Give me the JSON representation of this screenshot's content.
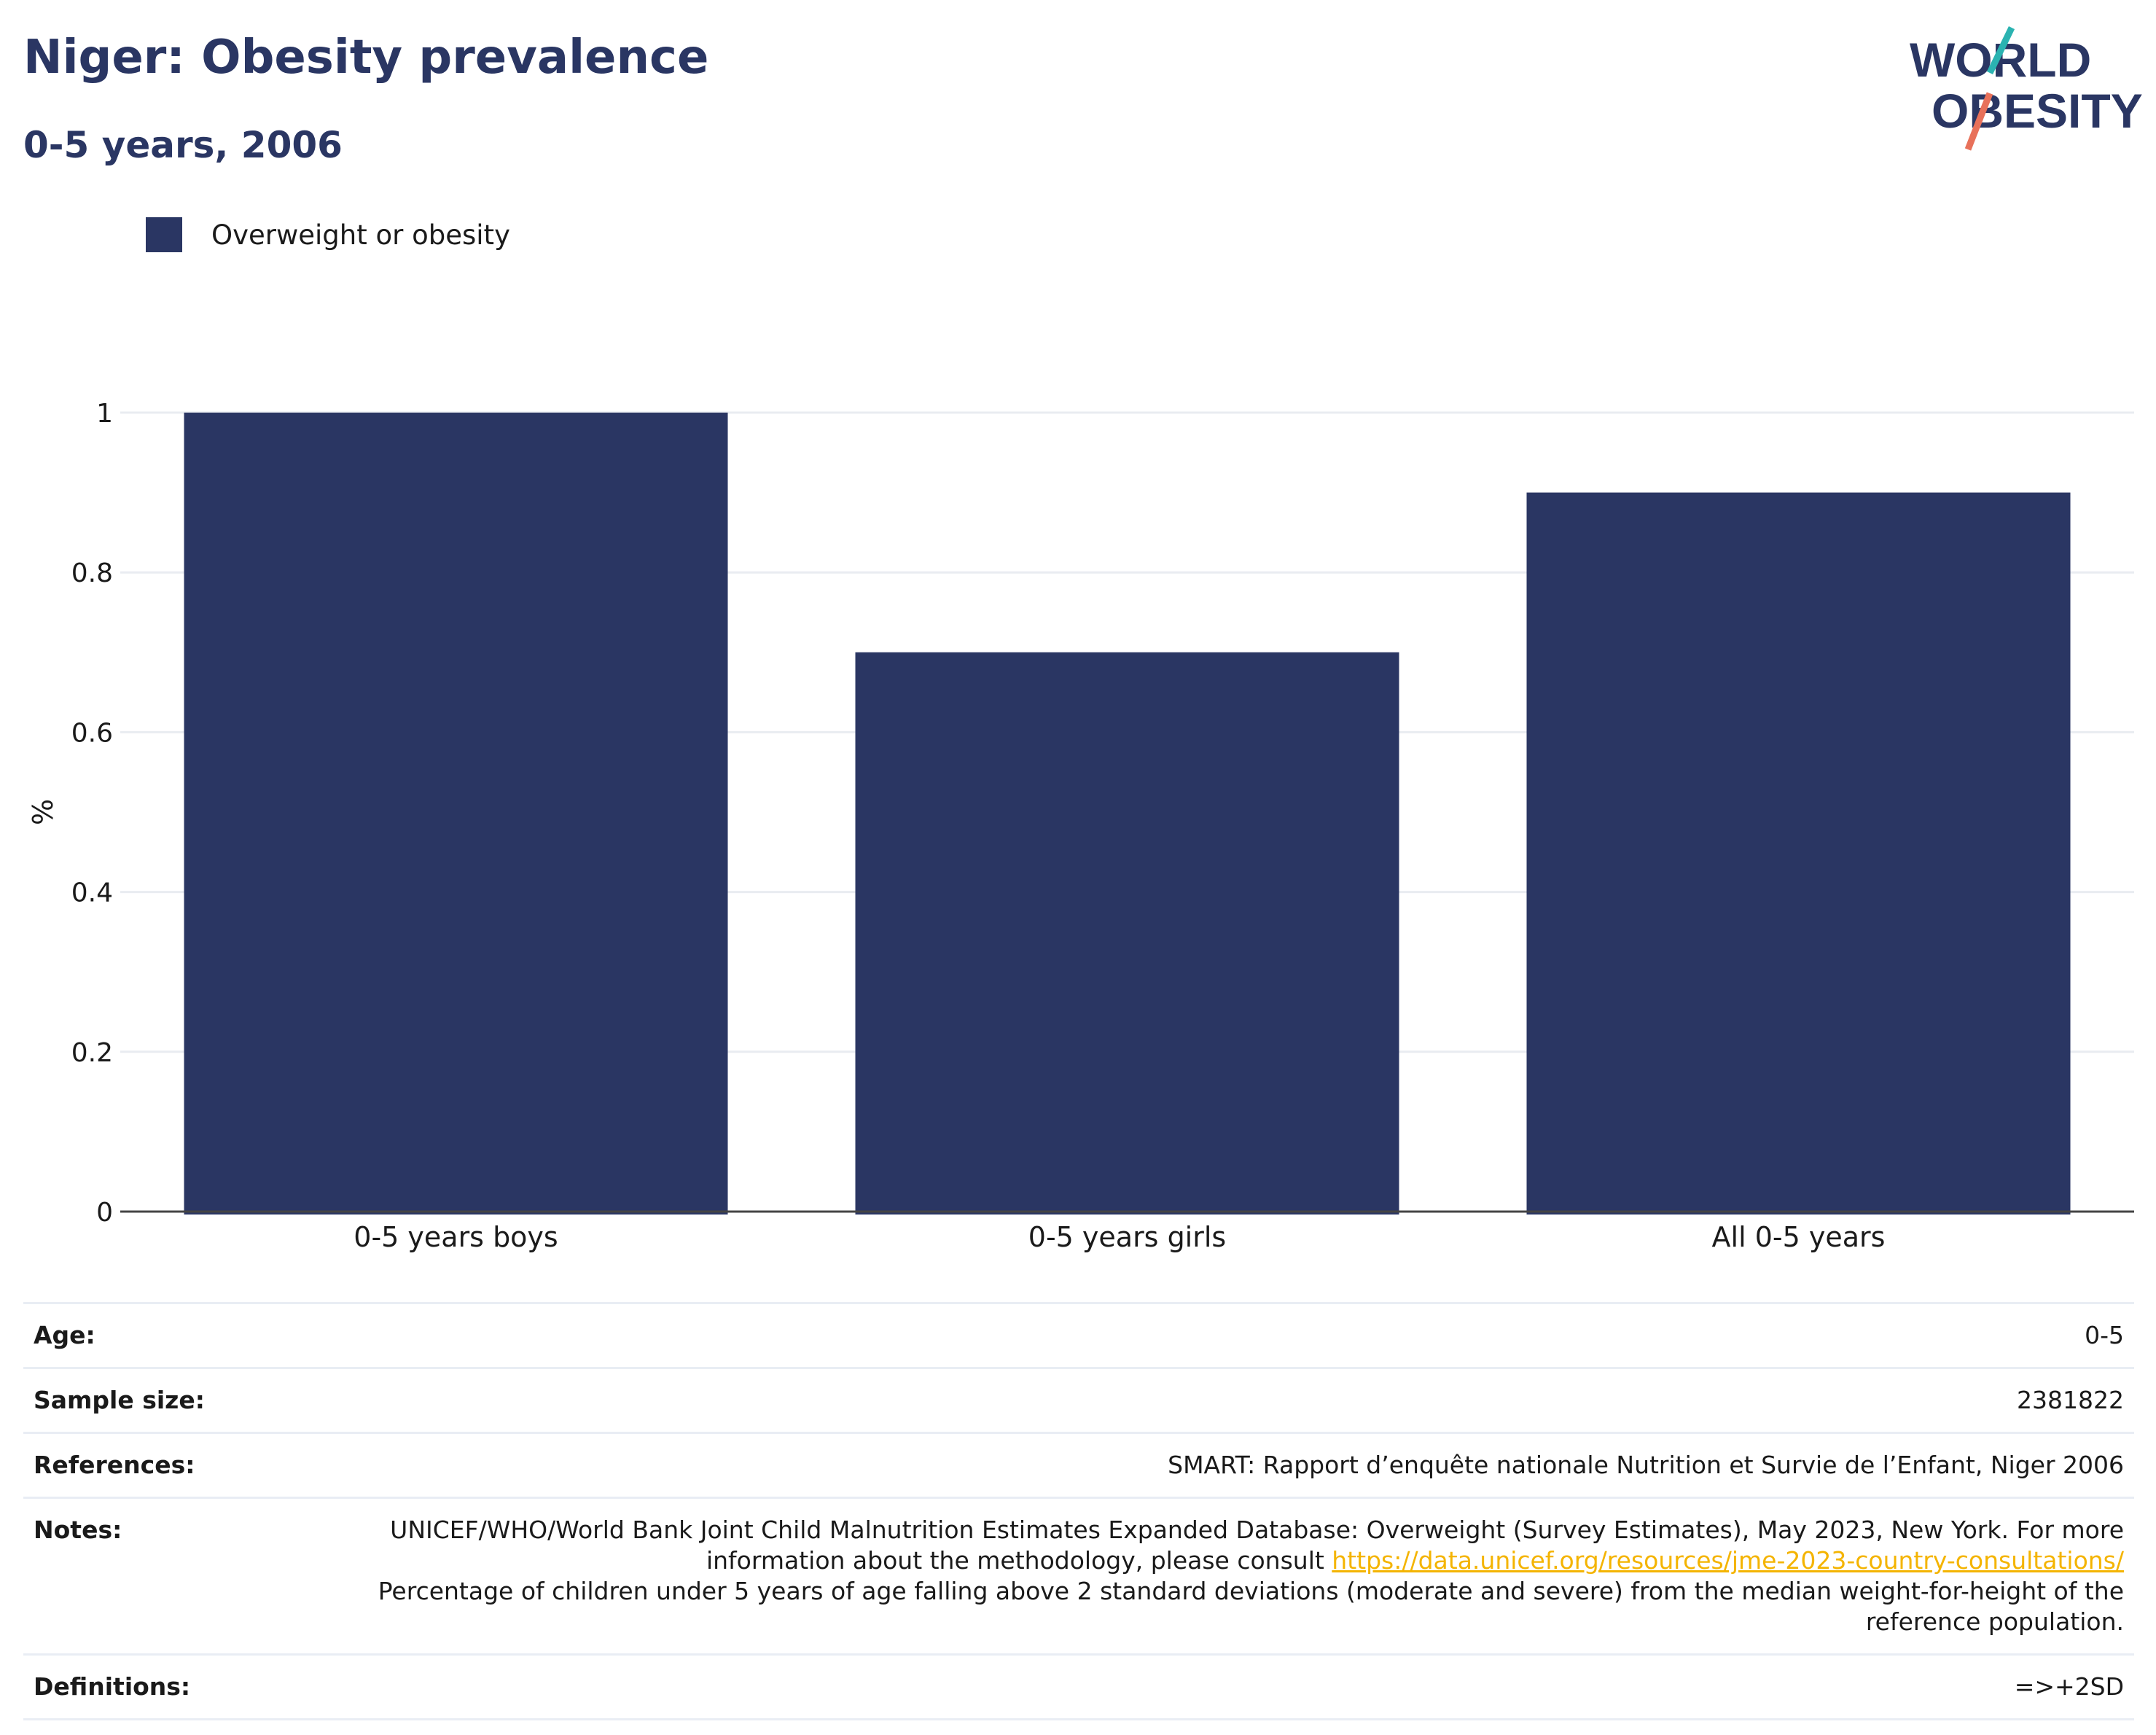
{
  "header": {
    "title": "Niger: Obesity prevalence",
    "subtitle": "0-5 years, 2006"
  },
  "logo": {
    "line1": "WORLD",
    "line2": "OBESITY",
    "icon": "world-obesity-logo"
  },
  "colors": {
    "bar": "#2a3663",
    "title": "#2a3663",
    "link": "#f4b400",
    "logo_teal": "#2bb3b1",
    "logo_coral": "#e8715a"
  },
  "chart_data": {
    "type": "bar",
    "categories": [
      "0-5 years boys",
      "0-5 years girls",
      "All 0-5 years"
    ],
    "series": [
      {
        "name": "Overweight or obesity",
        "values": [
          1.0,
          0.7,
          0.9
        ]
      }
    ],
    "ylabel": "%",
    "ylim": [
      0,
      1
    ],
    "yticks": [
      0,
      0.2,
      0.4,
      0.6,
      0.8,
      1
    ],
    "ytick_labels": [
      "0",
      "0.2",
      "0.4",
      "0.6",
      "0.8",
      "1"
    ],
    "grid": true,
    "legend": "top-left"
  },
  "info": {
    "age_label": "Age:",
    "age_value": "0-5",
    "sample_label": "Sample size:",
    "sample_value": "2381822",
    "references_label": "References:",
    "references_value": "SMART: Rapport d’enquête nationale Nutrition et Survie de l’Enfant, Niger 2006",
    "notes_label": "Notes:",
    "notes_text_1": "UNICEF/WHO/World Bank Joint Child Malnutrition Estimates Expanded Database: Overweight (Survey Estimates), May 2023, New York. For more information about the methodology, please consult ",
    "notes_link": "https://data.unicef.org/resources/jme-2023-country-consultations/",
    "notes_text_2": "Percentage of children under 5 years of age falling above 2 standard deviations (moderate and severe) from the median weight-for-height of the reference population.",
    "definitions_label": "Definitions:",
    "definitions_value": "=>+2SD"
  }
}
